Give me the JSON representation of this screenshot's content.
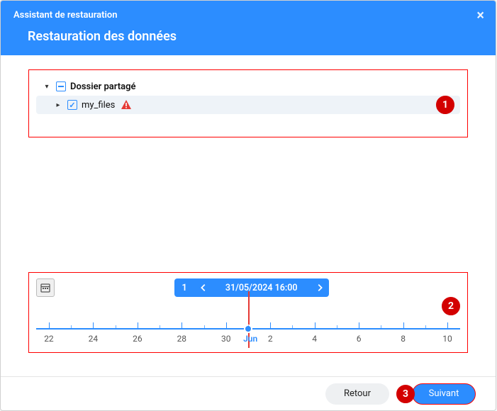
{
  "header": {
    "wizard_label": "Assistant de restauration",
    "title": "Restauration des données"
  },
  "tree": {
    "root": {
      "label": "Dossier partagé",
      "expanded": true,
      "checkbox_state": "partial"
    },
    "child": {
      "label": "my_files",
      "expanded": false,
      "checkbox_state": "checked",
      "warning": true
    }
  },
  "badges": {
    "step1": "1",
    "step2": "2",
    "step3": "3"
  },
  "timeline": {
    "snapshot_count": "1",
    "date_label": "31/05/2024 16:00",
    "month_label": "Jun",
    "day_labels": [
      "22",
      "24",
      "26",
      "28",
      "30",
      "2",
      "4",
      "6",
      "8",
      "10"
    ],
    "marker_pos_pct": 50,
    "colors": {
      "axis": "#2c8dff",
      "marker_line": "#e53935"
    }
  },
  "footer": {
    "back_label": "Retour",
    "next_label": "Suivant"
  },
  "colors": {
    "primary": "#2c8dff",
    "highlight_border": "#ff0000",
    "badge_bg": "#d30000",
    "badge_fg": "#ffffff"
  }
}
